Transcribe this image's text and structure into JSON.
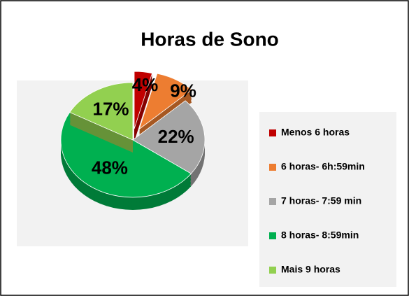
{
  "chart_data": {
    "type": "pie",
    "title": "Horas de Sono",
    "categories": [
      "Menos 6 horas",
      "6 horas- 6h:59min",
      "7 horas- 7:59 min",
      "8 horas- 8:59min",
      "Mais 9 horas"
    ],
    "values": [
      4,
      9,
      22,
      48,
      17
    ],
    "value_labels": [
      "4%",
      "9%",
      "22%",
      "48%",
      "17%"
    ],
    "colors": [
      "#c00000",
      "#ed7d31",
      "#a5a5a5",
      "#00b050",
      "#92d050"
    ],
    "legend": "right"
  }
}
